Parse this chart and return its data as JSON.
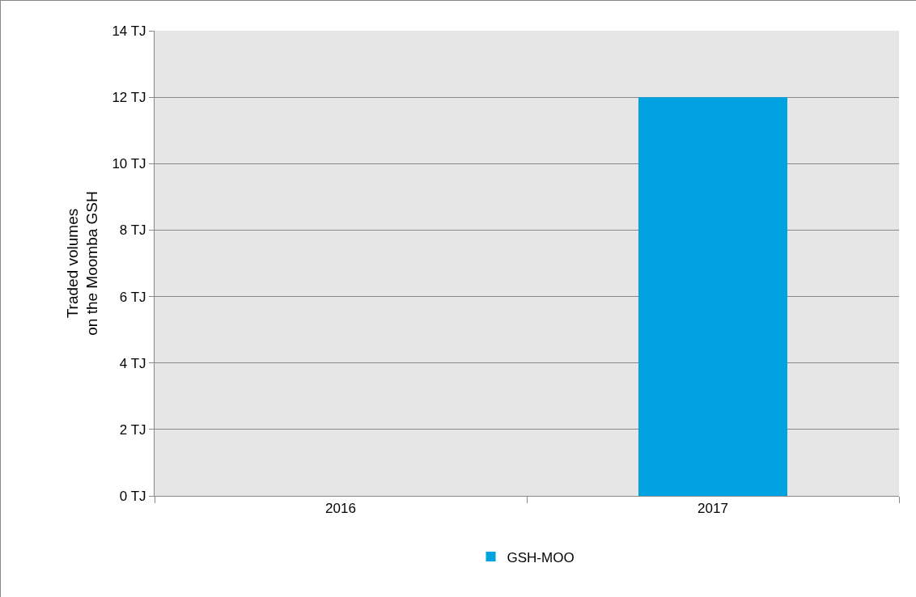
{
  "chart_data": {
    "type": "bar",
    "ylabel": "Traded volumes\non the Moomba GSH",
    "categories": [
      "2016",
      "2017"
    ],
    "series": [
      {
        "name": "GSH-MOO",
        "color": "#00a2e1",
        "values": [
          0,
          12
        ]
      }
    ],
    "ylim": [
      0,
      14
    ],
    "yticks": [
      {
        "value": 0,
        "label": "0 TJ"
      },
      {
        "value": 2,
        "label": "2 TJ"
      },
      {
        "value": 4,
        "label": "4 TJ"
      },
      {
        "value": 6,
        "label": "6 TJ"
      },
      {
        "value": 8,
        "label": "8 TJ"
      },
      {
        "value": 10,
        "label": "10 TJ"
      },
      {
        "value": 12,
        "label": "12 TJ"
      },
      {
        "value": 14,
        "label": "14 TJ"
      }
    ],
    "grid": "y",
    "legend": "bottom"
  }
}
